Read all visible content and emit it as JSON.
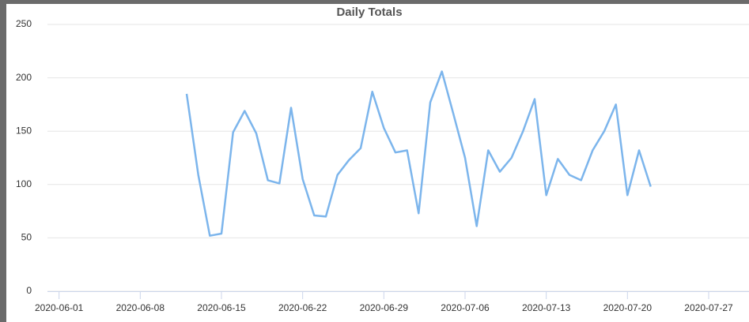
{
  "chart_data": {
    "type": "line",
    "title": "Daily Totals",
    "x": [
      "2020-06-12",
      "2020-06-13",
      "2020-06-14",
      "2020-06-15",
      "2020-06-16",
      "2020-06-17",
      "2020-06-18",
      "2020-06-19",
      "2020-06-20",
      "2020-06-21",
      "2020-06-22",
      "2020-06-23",
      "2020-06-24",
      "2020-06-25",
      "2020-06-26",
      "2020-06-27",
      "2020-06-28",
      "2020-06-29",
      "2020-06-30",
      "2020-07-01",
      "2020-07-02",
      "2020-07-03",
      "2020-07-04",
      "2020-07-05",
      "2020-07-06",
      "2020-07-07",
      "2020-07-08",
      "2020-07-09",
      "2020-07-10",
      "2020-07-11",
      "2020-07-12",
      "2020-07-13",
      "2020-07-14",
      "2020-07-15",
      "2020-07-16",
      "2020-07-17",
      "2020-07-18",
      "2020-07-19",
      "2020-07-20",
      "2020-07-21",
      "2020-07-22"
    ],
    "series": [
      {
        "color": "#7cb5ec",
        "values": [
          185,
          109,
          52,
          54,
          149,
          169,
          148,
          104,
          101,
          172,
          105,
          71,
          70,
          109,
          123,
          134,
          187,
          153,
          130,
          132,
          73,
          177,
          206,
          166,
          125,
          61,
          132,
          112,
          125,
          150,
          180,
          90,
          124,
          109,
          104,
          132,
          150,
          175,
          90,
          132,
          98
        ]
      }
    ],
    "xlim": [
      "2020-05-31",
      "2020-07-30"
    ],
    "xticks": [
      "2020-06-01",
      "2020-06-08",
      "2020-06-15",
      "2020-06-22",
      "2020-06-29",
      "2020-07-06",
      "2020-07-13",
      "2020-07-20",
      "2020-07-27"
    ],
    "ylim": [
      0,
      250
    ],
    "yticks": [
      0,
      50,
      100,
      150,
      200,
      250
    ],
    "grid": true
  }
}
